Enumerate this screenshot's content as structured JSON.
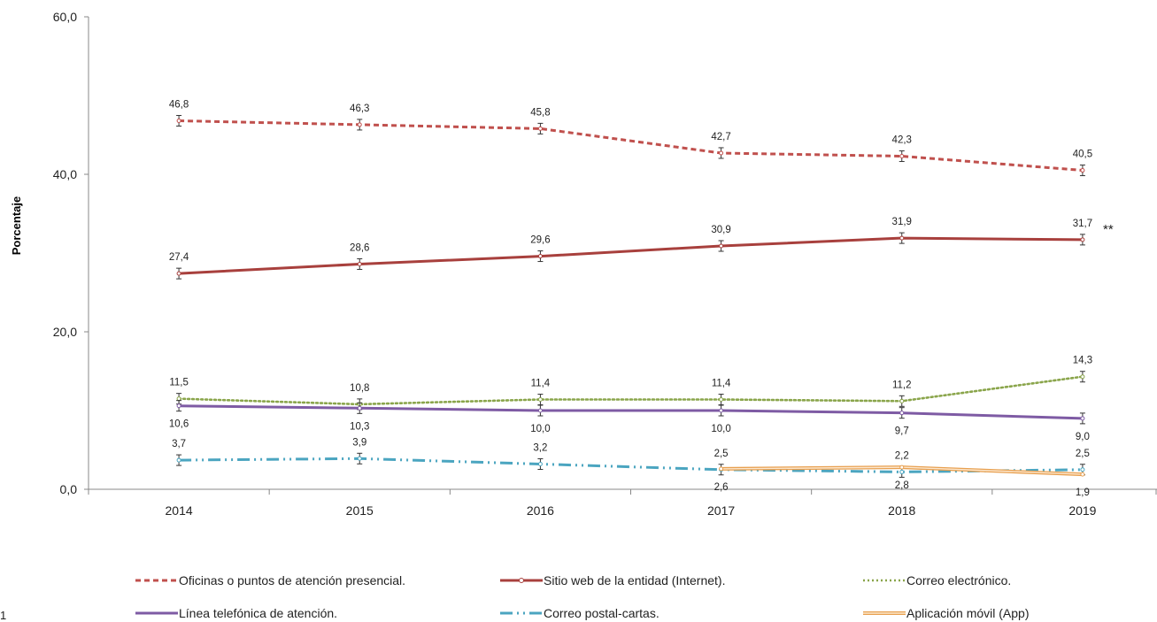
{
  "chart_data": {
    "type": "line",
    "x": [
      "2014",
      "2015",
      "2016",
      "2017",
      "2018",
      "2019"
    ],
    "ylabel": "Porcentaje",
    "xlabel": "",
    "ylim": [
      0,
      60
    ],
    "yticks": [
      "0,0",
      "20,0",
      "40,0",
      "60,0"
    ],
    "grid": false,
    "legend_position": "bottom",
    "annotation": "**",
    "series": [
      {
        "name": "Oficinas o puntos de atención presencial.",
        "values": [
          46.8,
          46.3,
          45.8,
          42.7,
          42.3,
          40.5
        ],
        "labels": [
          "46,8",
          "46,3",
          "45,8",
          "42,7",
          "42,3",
          "40,5"
        ],
        "label_pos": "above",
        "color": "#C0504D",
        "style": "dashed",
        "errorbars": true
      },
      {
        "name": "Sitio web de la entidad (Internet).",
        "values": [
          27.4,
          28.6,
          29.6,
          30.9,
          31.9,
          31.7
        ],
        "labels": [
          "27,4",
          "28,6",
          "29,6",
          "30,9",
          "31,9",
          "31,7"
        ],
        "label_pos": "above",
        "color": "#A8403D",
        "style": "solid-marker",
        "errorbars": true
      },
      {
        "name": "Correo electrónico.",
        "values": [
          11.5,
          10.8,
          11.4,
          11.4,
          11.2,
          14.3
        ],
        "labels": [
          "11,5",
          "10,8",
          "11,4",
          "11,4",
          "11,2",
          "14,3"
        ],
        "label_pos": "above",
        "color": "#8AA54B",
        "style": "dotted",
        "errorbars": true
      },
      {
        "name": "Línea telefónica de atención.",
        "values": [
          10.6,
          10.3,
          10.0,
          10.0,
          9.7,
          9.0
        ],
        "labels": [
          "10,6",
          "10,3",
          "10,0",
          "10,0",
          "9,7",
          "9,0"
        ],
        "label_pos": "below",
        "color": "#7E5BA4",
        "style": "solid",
        "errorbars": true
      },
      {
        "name": "Correo postal-cartas.",
        "values": [
          3.7,
          3.9,
          3.2,
          2.5,
          2.2,
          2.5
        ],
        "labels": [
          "3,7",
          "3,9",
          "3,2",
          "2,5",
          "2,2",
          "2,5"
        ],
        "label_pos": "above",
        "color": "#4BA5C0",
        "style": "dashdotdot",
        "errorbars": true
      },
      {
        "name": "Aplicación móvil (App)",
        "values": [
          null,
          null,
          null,
          2.6,
          2.8,
          1.9
        ],
        "labels": [
          "",
          "",
          "",
          "2,6",
          "2,8",
          "1,9"
        ],
        "label_pos": "below",
        "color": "#E8A050",
        "style": "double",
        "errorbars": false
      }
    ]
  },
  "footnote": "1"
}
